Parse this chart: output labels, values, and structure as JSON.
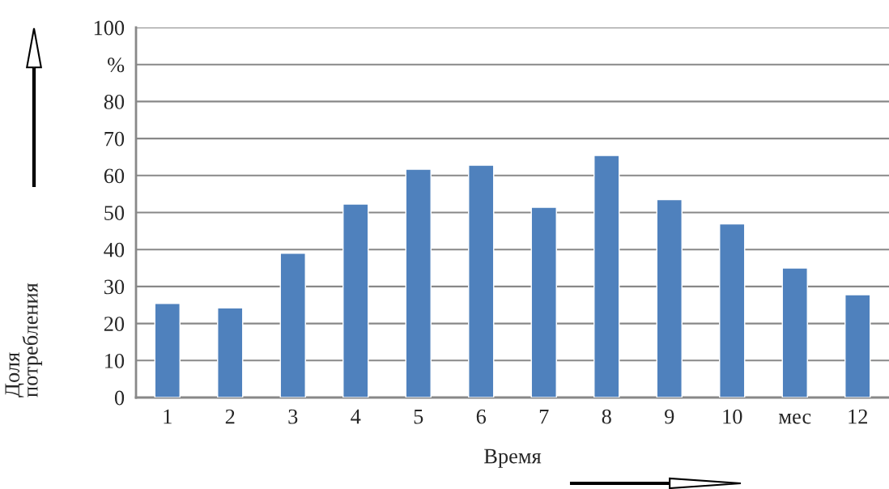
{
  "chart_data": {
    "type": "bar",
    "xlabel": "Время",
    "ylabel": "Доля\nпотребления",
    "categories": [
      "1",
      "2",
      "3",
      "4",
      "5",
      "6",
      "7",
      "8",
      "9",
      "10",
      "мес",
      "12"
    ],
    "values": [
      25.4,
      24.2,
      39.0,
      52.3,
      61.7,
      62.8,
      51.4,
      65.4,
      53.5,
      46.9,
      35.0,
      27.8
    ],
    "color": "#4f81bd",
    "ylim": [
      0,
      100
    ],
    "yticks": [
      0,
      10,
      20,
      30,
      40,
      50,
      60,
      70,
      80,
      {
        "value": 90,
        "label": "%"
      },
      100
    ],
    "grid": "y",
    "legend": false
  }
}
